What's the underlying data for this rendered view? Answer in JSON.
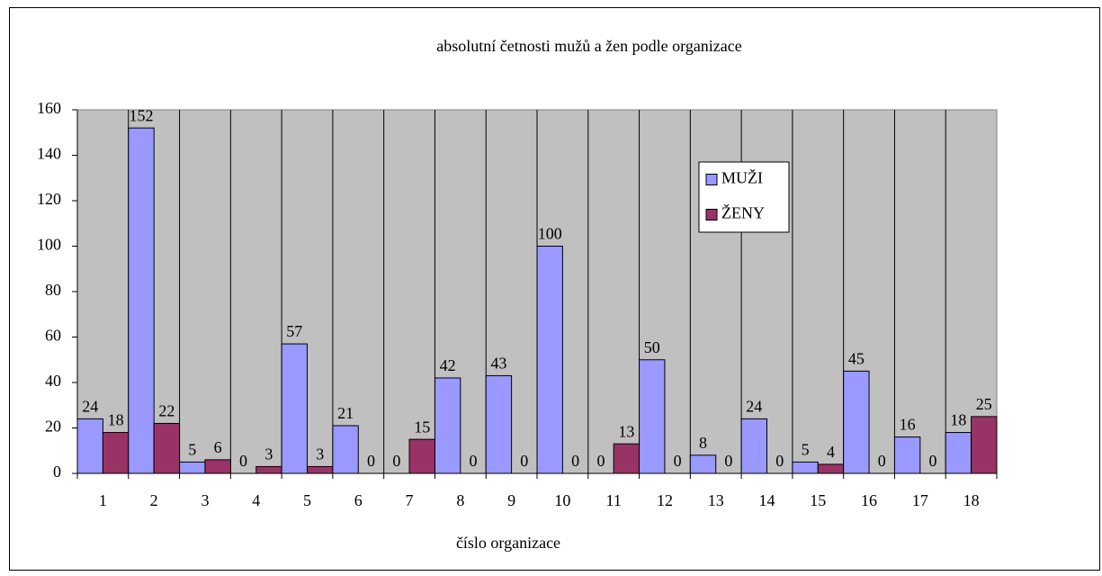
{
  "chart_data": {
    "type": "bar",
    "title": "absolutní četnosti mužů a žen podle organizace",
    "x_label": "číslo organizace",
    "categories": [
      "1",
      "2",
      "3",
      "4",
      "5",
      "6",
      "7",
      "8",
      "9",
      "10",
      "11",
      "12",
      "13",
      "14",
      "15",
      "16",
      "17",
      "18"
    ],
    "series": [
      {
        "name": "MUŽI",
        "color": "#9999ff",
        "values": [
          24,
          152,
          5,
          0,
          57,
          21,
          0,
          42,
          43,
          100,
          0,
          50,
          8,
          24,
          5,
          45,
          16,
          18
        ]
      },
      {
        "name": "ŽENY",
        "color": "#993366",
        "values": [
          18,
          22,
          6,
          3,
          3,
          0,
          15,
          0,
          0,
          0,
          13,
          0,
          0,
          0,
          4,
          0,
          0,
          25
        ]
      }
    ],
    "ylim": [
      0,
      160
    ],
    "yticks": [
      0,
      20,
      40,
      60,
      80,
      100,
      120,
      140,
      160
    ],
    "legend": "upper right"
  }
}
